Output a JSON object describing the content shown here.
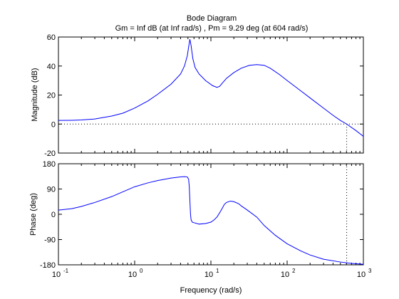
{
  "figure": {
    "title": "Bode Diagram",
    "subtitle": "Gm = Inf dB (at Inf rad/s) ,  Pm = 9.29 deg (at 604 rad/s)",
    "xlabel": "Frequency  (rad/s)"
  },
  "colors": {
    "line": "#0000ff",
    "axes": "#000000",
    "background": "#ffffff",
    "marker": "#000000"
  },
  "chart_data": [
    {
      "type": "line",
      "name": "magnitude",
      "xscale": "log",
      "xlim": [
        0.1,
        1000
      ],
      "ylim": [
        -20,
        60
      ],
      "ylabel": "Magnitude (dB)",
      "yticks": [
        -20,
        0,
        20,
        40,
        60
      ],
      "ytick_labels": [
        "-20",
        "0",
        "20",
        "40",
        "60"
      ],
      "xticks": [
        0.1,
        1,
        10,
        100,
        1000
      ],
      "xtick_labels": [],
      "reference_hline": 0,
      "marker_vline": 604,
      "series": [
        {
          "x": [
            0.1,
            0.15,
            0.2,
            0.3,
            0.5,
            0.7,
            1.0,
            1.5,
            2.0,
            3.0,
            4.0,
            4.5,
            4.9,
            5.1,
            5.3,
            5.5,
            5.8,
            6.2,
            7.0,
            8.5,
            10.5,
            12.0,
            13.0,
            14.0,
            16.0,
            20.0,
            25.0,
            32.0,
            40.0,
            50.0,
            60.0,
            80.0,
            100,
            150,
            200,
            300,
            400,
            500,
            604,
            800,
            1000
          ],
          "y": [
            2.5,
            2.6,
            2.8,
            3.5,
            5.5,
            7.5,
            11.0,
            16.0,
            20.5,
            27.5,
            34.5,
            40.0,
            47.0,
            53.0,
            58.5,
            54.0,
            45.0,
            39.0,
            34.5,
            30.0,
            26.5,
            25.3,
            26.0,
            28.0,
            31.5,
            35.5,
            38.5,
            40.5,
            41.0,
            40.5,
            38.5,
            34.0,
            30.0,
            23.0,
            18.0,
            11.0,
            6.0,
            2.5,
            0,
            -4.5,
            -8.5
          ]
        }
      ]
    },
    {
      "type": "line",
      "name": "phase",
      "xscale": "log",
      "xlim": [
        0.1,
        1000
      ],
      "ylim": [
        -180,
        180
      ],
      "ylabel": "Phase (deg)",
      "yticks": [
        -180,
        -90,
        0,
        90,
        180
      ],
      "ytick_labels": [
        "-180",
        "-90",
        "0",
        "90",
        "180"
      ],
      "xticks": [
        0.1,
        1,
        10,
        100,
        1000
      ],
      "xtick_labels": [
        "10",
        "10",
        "10",
        "10",
        "10"
      ],
      "xtick_exponents": [
        "-1",
        "0",
        "1",
        "2",
        "3"
      ],
      "reference_hline": -180,
      "marker_vline": 604,
      "series": [
        {
          "x": [
            0.1,
            0.15,
            0.2,
            0.3,
            0.5,
            0.7,
            1.0,
            1.5,
            2.0,
            3.0,
            4.0,
            4.5,
            4.9,
            5.1,
            5.2,
            5.3,
            5.4,
            5.5,
            5.7,
            6.0,
            7.0,
            8.5,
            10.0,
            11.0,
            12.0,
            13.0,
            14.0,
            15.0,
            16.0,
            18.0,
            20.0,
            23.0,
            25.0,
            30.0,
            40.0,
            50.0,
            70.0,
            100,
            150,
            200,
            300,
            500,
            700,
            1000
          ],
          "y": [
            15,
            20,
            28,
            42,
            63,
            80,
            98,
            112,
            120,
            129,
            133,
            134,
            133,
            125,
            100,
            50,
            0,
            -20,
            -28,
            -30,
            -35,
            -33,
            -28,
            -20,
            -10,
            5,
            20,
            35,
            42,
            47,
            45,
            38,
            30,
            15,
            -10,
            -40,
            -75,
            -105,
            -130,
            -145,
            -160,
            -170,
            -175,
            -178
          ]
        }
      ]
    }
  ]
}
